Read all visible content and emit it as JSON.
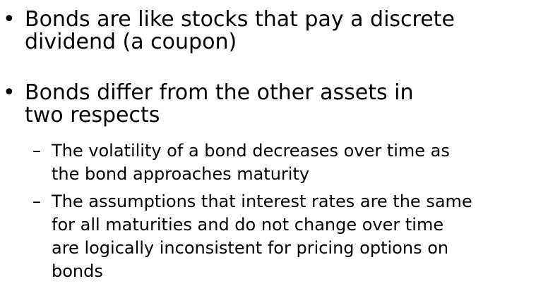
{
  "bullets": [
    {
      "marker": "•",
      "text": "Bonds are like stocks that pay a discrete\ndividend (a coupon)"
    },
    {
      "marker": "•",
      "text": "Bonds differ from the other assets in\ntwo respects"
    }
  ],
  "sub_bullets": [
    {
      "marker": "–",
      "text": "The volatility of a bond decreases over time as\nthe bond approaches maturity"
    },
    {
      "marker": "–",
      "text": "The assumptions that interest rates are the same\nfor all maturities and do not change over time\nare logically inconsistent for pricing options on\nbonds"
    }
  ]
}
